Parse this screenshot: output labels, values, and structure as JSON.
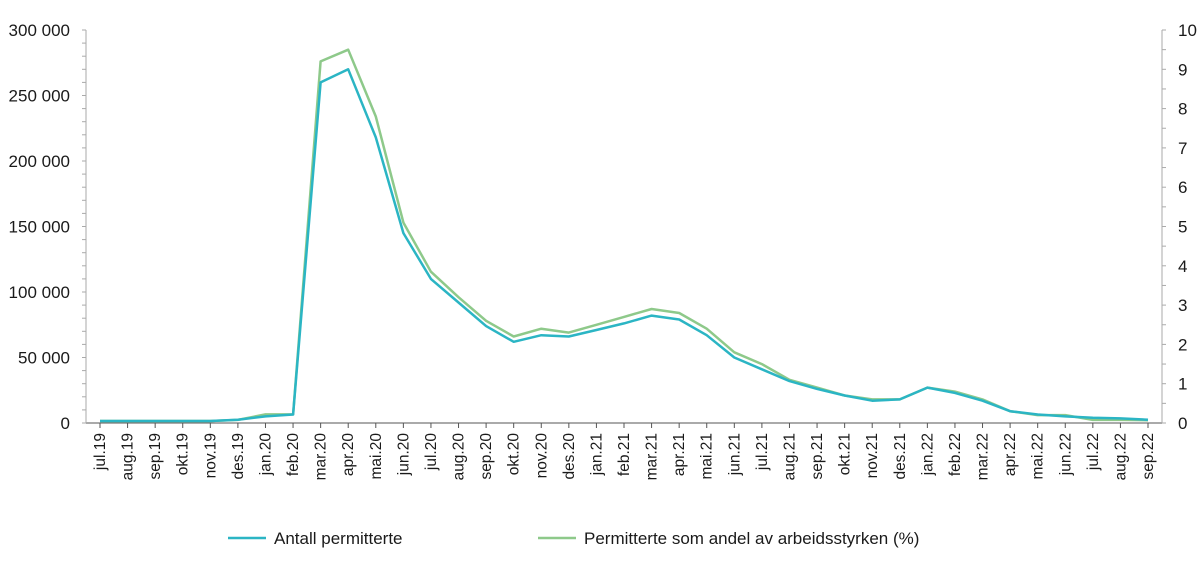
{
  "chart_data": {
    "type": "line",
    "title": "",
    "xlabel": "",
    "ylabel": "",
    "categories": [
      "jul.19",
      "aug.19",
      "sep.19",
      "okt.19",
      "nov.19",
      "des.19",
      "jan.20",
      "feb.20",
      "mar.20",
      "apr.20",
      "mai.20",
      "jun.20",
      "jul.20",
      "aug.20",
      "sep.20",
      "okt.20",
      "nov.20",
      "des.20",
      "jan.21",
      "feb.21",
      "mar.21",
      "apr.21",
      "mai.21",
      "jun.21",
      "jul.21",
      "aug.21",
      "sep.21",
      "okt.21",
      "nov.21",
      "des.21",
      "jan.22",
      "feb.22",
      "mar.22",
      "apr.22",
      "mai.22",
      "jun.22",
      "jul.22",
      "aug.22",
      "sep.22"
    ],
    "y_left": {
      "ylim": [
        0,
        300000
      ],
      "ticks": [
        0,
        50000,
        100000,
        150000,
        200000,
        250000,
        300000
      ],
      "tick_labels": [
        "0",
        "50 000",
        "100 000",
        "150 000",
        "200 000",
        "250 000",
        "300 000"
      ]
    },
    "y_right": {
      "ylim": [
        0,
        10
      ],
      "ticks": [
        0,
        1,
        2,
        3,
        4,
        5,
        6,
        7,
        8,
        9,
        10
      ],
      "tick_labels": [
        "0",
        "1",
        "2",
        "3",
        "4",
        "5",
        "6",
        "7",
        "8",
        "9",
        "10"
      ]
    },
    "series": [
      {
        "name": "Antall permitterte",
        "axis": "left",
        "color": "#2bb5c4",
        "values": [
          1500,
          1500,
          1500,
          1500,
          1500,
          2500,
          5000,
          6500,
          260000,
          270000,
          218000,
          145000,
          110000,
          92000,
          74000,
          62000,
          67000,
          66000,
          71000,
          76000,
          82000,
          79000,
          67000,
          50000,
          41000,
          32000,
          26000,
          21000,
          17000,
          18000,
          27000,
          23000,
          17000,
          9000,
          6500,
          5000,
          4000,
          3500,
          2500
        ]
      },
      {
        "name": "Permitterte som andel av arbeidsstyrken (%)",
        "axis": "right",
        "color": "#8ec98a",
        "values": [
          0.05,
          0.05,
          0.05,
          0.05,
          0.05,
          0.08,
          0.22,
          0.22,
          9.2,
          9.5,
          7.8,
          5.1,
          3.85,
          3.2,
          2.6,
          2.2,
          2.4,
          2.3,
          2.5,
          2.7,
          2.9,
          2.8,
          2.4,
          1.8,
          1.5,
          1.1,
          0.9,
          0.7,
          0.6,
          0.6,
          0.9,
          0.8,
          0.6,
          0.3,
          0.2,
          0.2,
          0.08,
          0.08,
          0.07
        ]
      }
    ],
    "legend_position": "bottom",
    "grid": false
  }
}
